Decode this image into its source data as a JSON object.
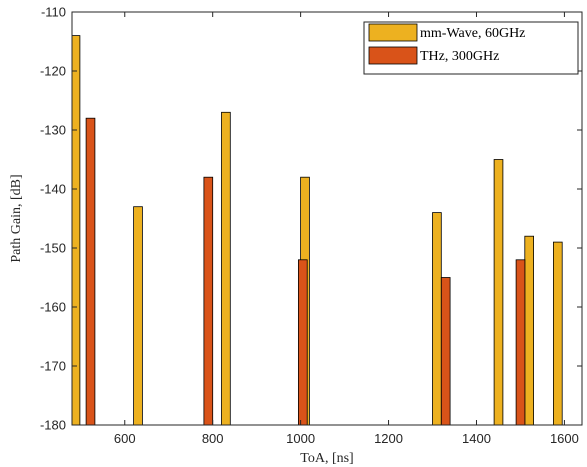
{
  "chart_data": {
    "type": "bar",
    "title": "",
    "xlabel": "ToA, [ns]",
    "ylabel": "Path Gain, [dB]",
    "xlim": [
      480,
      1640
    ],
    "ylim": [
      -180,
      -110
    ],
    "baseline": -180,
    "xticks": [
      600,
      800,
      1000,
      1200,
      1400,
      1600
    ],
    "yticks": [
      -110,
      -120,
      -130,
      -140,
      -150,
      -160,
      -170,
      -180
    ],
    "grid": false,
    "box": true,
    "legend_position": "top-right",
    "bar_width_ns": 20,
    "series": [
      {
        "name": "mm-Wave, 60GHz",
        "color": "#EDB120",
        "x": [
          488,
          630,
          830,
          1010,
          1310,
          1450,
          1520,
          1585
        ],
        "values": [
          -114,
          -143,
          -127,
          -138,
          -144,
          -135,
          -148,
          -149
        ]
      },
      {
        "name": "THz, 300GHz",
        "color": "#D95319",
        "x": [
          522,
          790,
          1005,
          1330,
          1500
        ],
        "values": [
          -128,
          -138,
          -152,
          -155,
          -152
        ]
      }
    ]
  }
}
